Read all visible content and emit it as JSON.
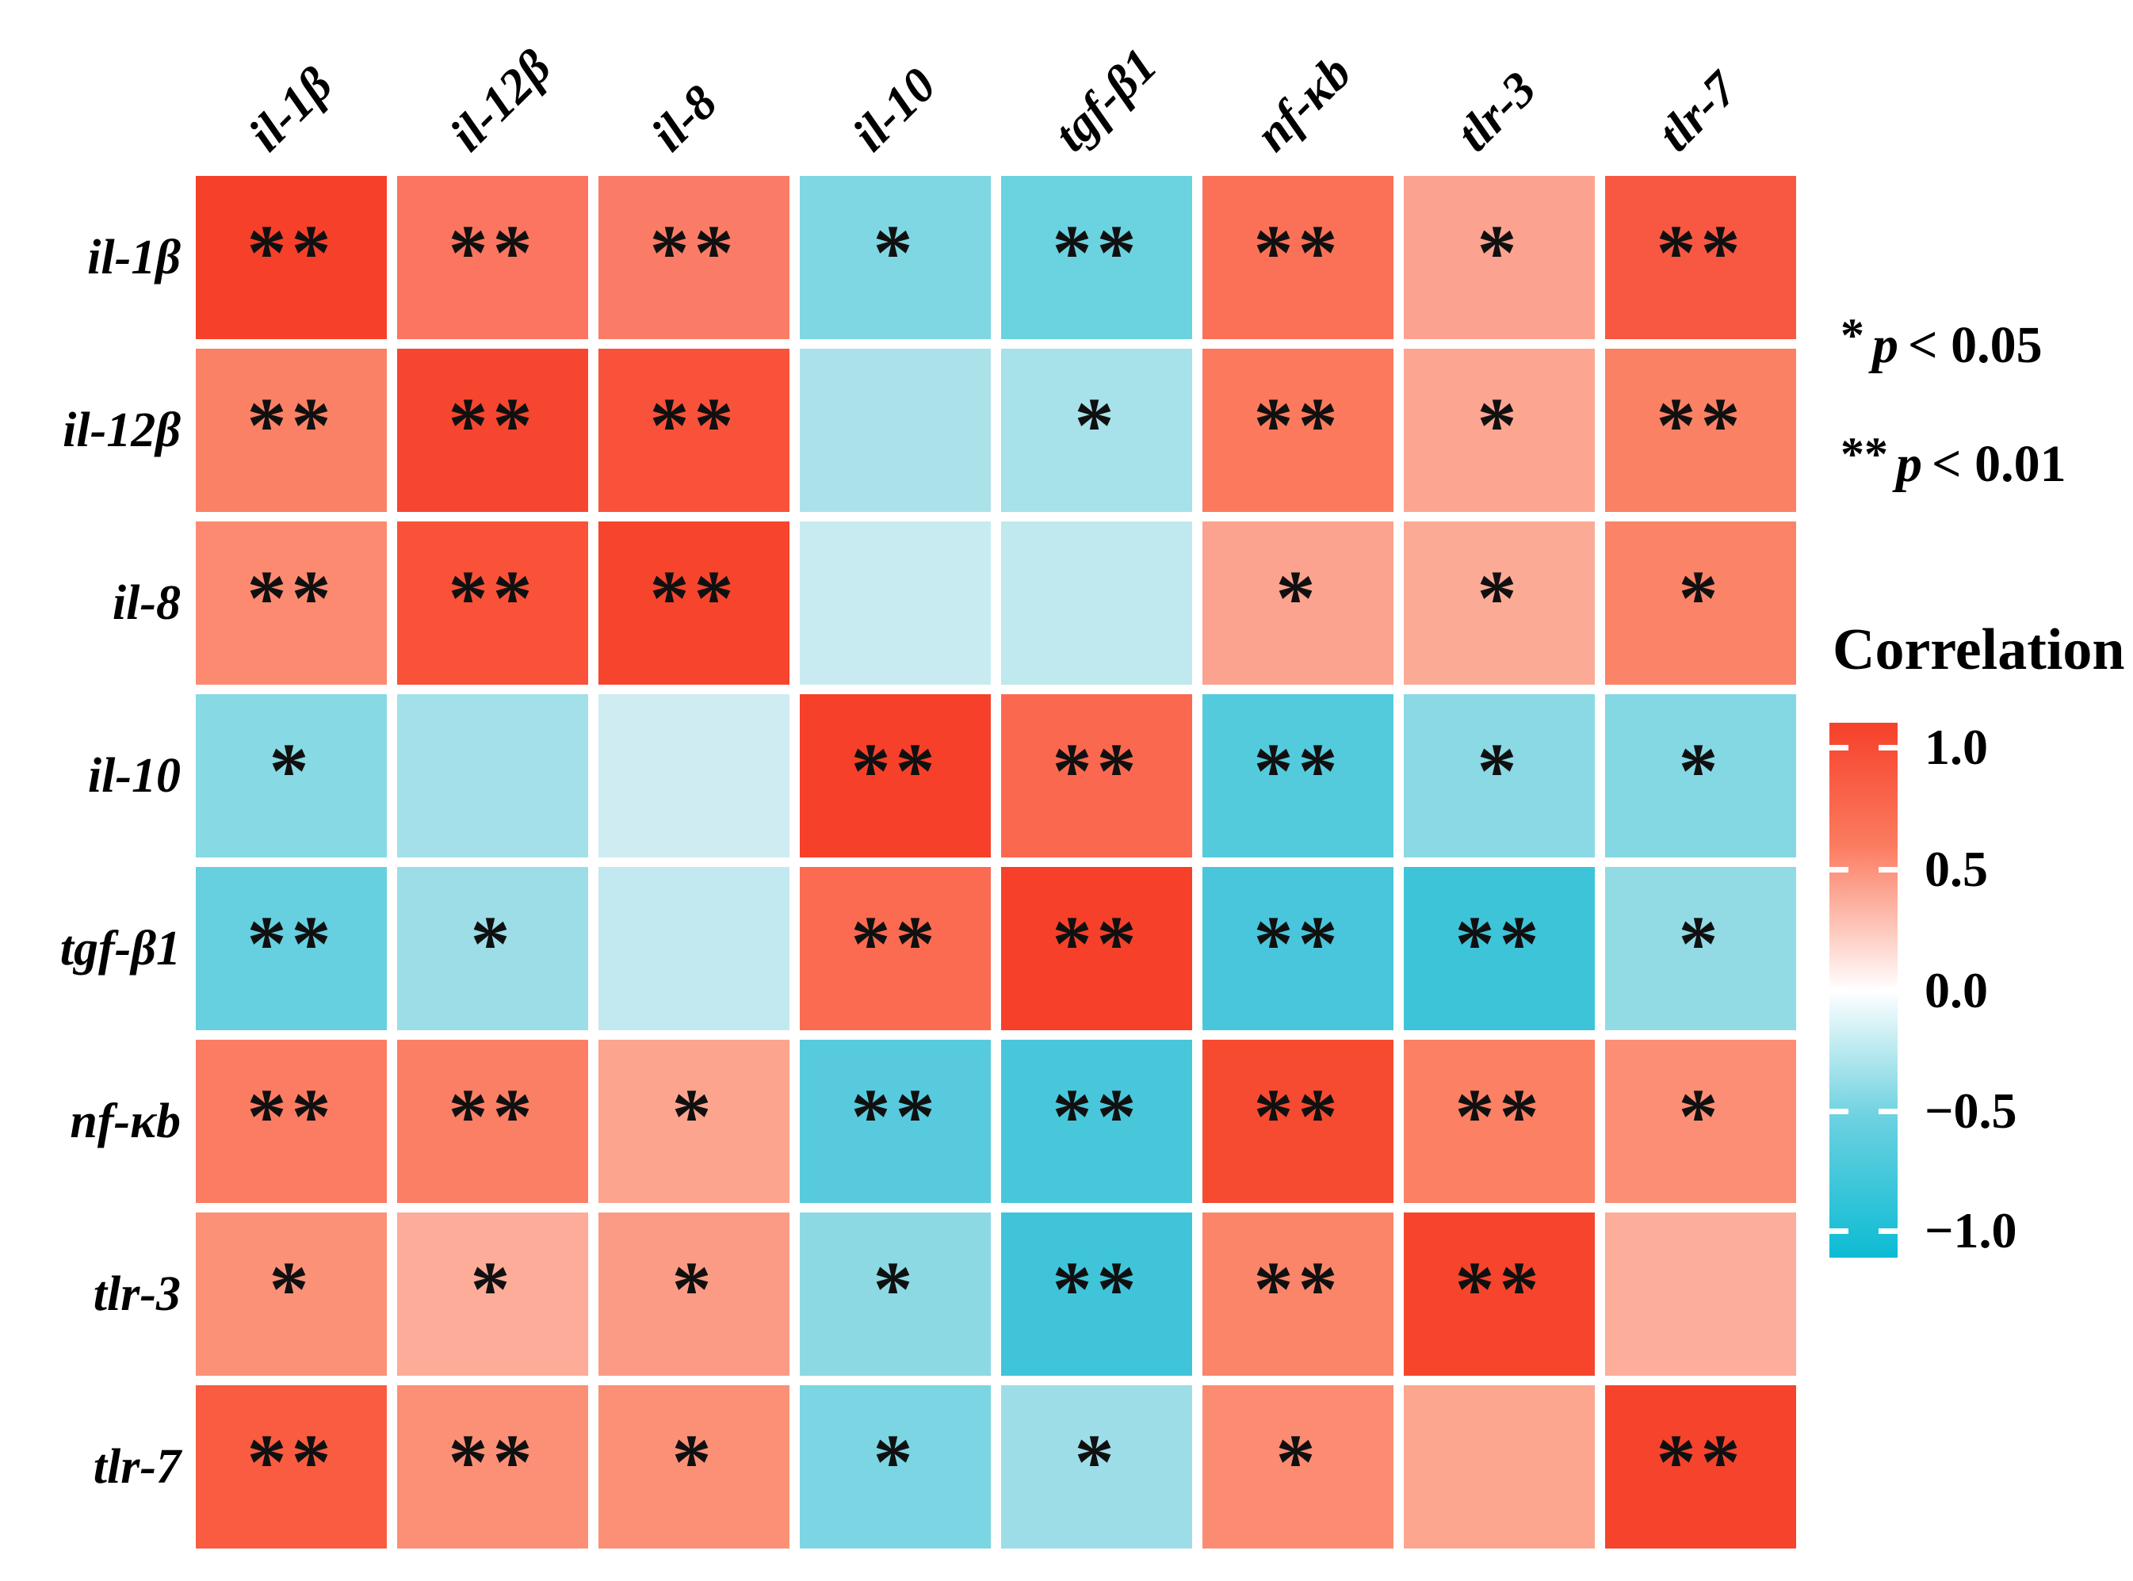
{
  "page": {
    "background": "#ffffff"
  },
  "chart_data": {
    "type": "heatmap",
    "title": "",
    "x_categories": [
      "il-1β",
      "il-12β",
      "il-8",
      "il-10",
      "tgf-β1",
      "nf-κb",
      "tlr-3",
      "tlr-7"
    ],
    "y_categories": [
      "il-1β",
      "il-12β",
      "il-8",
      "il-10",
      "tgf-β1",
      "nf-κb",
      "tlr-3",
      "tlr-7"
    ],
    "values": [
      [
        1.0,
        0.6,
        0.55,
        -0.42,
        -0.52,
        0.62,
        0.35,
        0.85
      ],
      [
        0.6,
        1.0,
        0.9,
        -0.28,
        -0.3,
        0.58,
        0.33,
        0.57
      ],
      [
        0.55,
        0.9,
        1.0,
        -0.15,
        -0.2,
        0.36,
        0.32,
        0.55
      ],
      [
        -0.42,
        -0.28,
        -0.15,
        1.0,
        0.68,
        -0.65,
        -0.44,
        -0.45
      ],
      [
        -0.52,
        -0.3,
        -0.2,
        0.68,
        1.0,
        -0.7,
        -0.75,
        -0.38
      ],
      [
        0.62,
        0.58,
        0.36,
        -0.65,
        -0.7,
        1.0,
        0.55,
        0.47
      ],
      [
        0.35,
        0.33,
        0.32,
        -0.44,
        -0.75,
        0.55,
        1.0,
        0.28
      ],
      [
        0.85,
        0.57,
        0.55,
        -0.45,
        -0.38,
        0.47,
        0.28,
        1.0
      ]
    ],
    "significance": [
      [
        "**",
        "**",
        "**",
        "*",
        "**",
        "**",
        "*",
        "**"
      ],
      [
        "**",
        "**",
        "**",
        "",
        "*",
        "**",
        "*",
        "**"
      ],
      [
        "**",
        "**",
        "**",
        "",
        "",
        "*",
        "*",
        "*"
      ],
      [
        "*",
        "",
        "",
        "**",
        "**",
        "**",
        "*",
        "*"
      ],
      [
        "**",
        "*",
        "",
        "**",
        "**",
        "**",
        "**",
        "*"
      ],
      [
        "**",
        "**",
        "*",
        "**",
        "**",
        "**",
        "**",
        "*"
      ],
      [
        "*",
        "*",
        "*",
        "*",
        "**",
        "**",
        "**",
        ""
      ],
      [
        "**",
        "**",
        "*",
        "*",
        "*",
        "*",
        "",
        "**"
      ]
    ],
    "cell_colors": [
      [
        "#f6402a",
        "#fb7560",
        "#fb7c66",
        "#7ed7e2",
        "#6bd2e0",
        "#fb7157",
        "#fba390",
        "#f85742"
      ],
      [
        "#fb8166",
        "#f64630",
        "#f9523a",
        "#abe2ea",
        "#a7e1e9",
        "#fb7a5e",
        "#fca692",
        "#fb8165"
      ],
      [
        "#fb8a70",
        "#f95238",
        "#f6452c",
        "#c8ebf1",
        "#bfe8ef",
        "#fba38e",
        "#fbaa96",
        "#fb8468"
      ],
      [
        "#87d9e4",
        "#a3e0e9",
        "#cfecf2",
        "#f6402a",
        "#fb6850",
        "#54cbdd",
        "#8ad9e4",
        "#84d8e3"
      ],
      [
        "#66cfe0",
        "#9cdde7",
        "#c2e9ef",
        "#fb6b51",
        "#f6402a",
        "#49c6db",
        "#3ec4d9",
        "#92dbe5"
      ],
      [
        "#fb7c62",
        "#fb7f65",
        "#fca48e",
        "#57cbdd",
        "#48c7db",
        "#f64b31",
        "#fb8064",
        "#fb8e74"
      ],
      [
        "#fb9177",
        "#fcac99",
        "#fb9b85",
        "#8cd9e4",
        "#3fc4da",
        "#fb8569",
        "#f6452c",
        "#fcae9b"
      ],
      [
        "#f95c40",
        "#fb9076",
        "#fb9076",
        "#7bd5e2",
        "#9ddde8",
        "#fb8c72",
        "#fca58f",
        "#f6432c"
      ]
    ],
    "colorbar": {
      "title": "Correlation",
      "tick_labels": [
        "1.0",
        "0.5",
        "0.0",
        "−0.5",
        "−1.0"
      ],
      "range_max": 1.0,
      "range_min": -1.0,
      "orientation": "vertical",
      "position": "right"
    },
    "sig_legend": [
      {
        "symbol": "*",
        "p_var": "p",
        "condition": "< 0.05"
      },
      {
        "symbol": "**",
        "p_var": "p",
        "condition": "< 0.01"
      }
    ],
    "grid": "off",
    "legend_position": "right"
  },
  "colors": {
    "star": "#101010",
    "label_text": "#000000",
    "tick_mark": "#ffffff",
    "colorbar_stops": [
      "#f6402a 0%",
      "#fb7c60 23%",
      "#ffffff 50%",
      "#6bd1e0 74%",
      "#0cbbd4 100%"
    ]
  }
}
